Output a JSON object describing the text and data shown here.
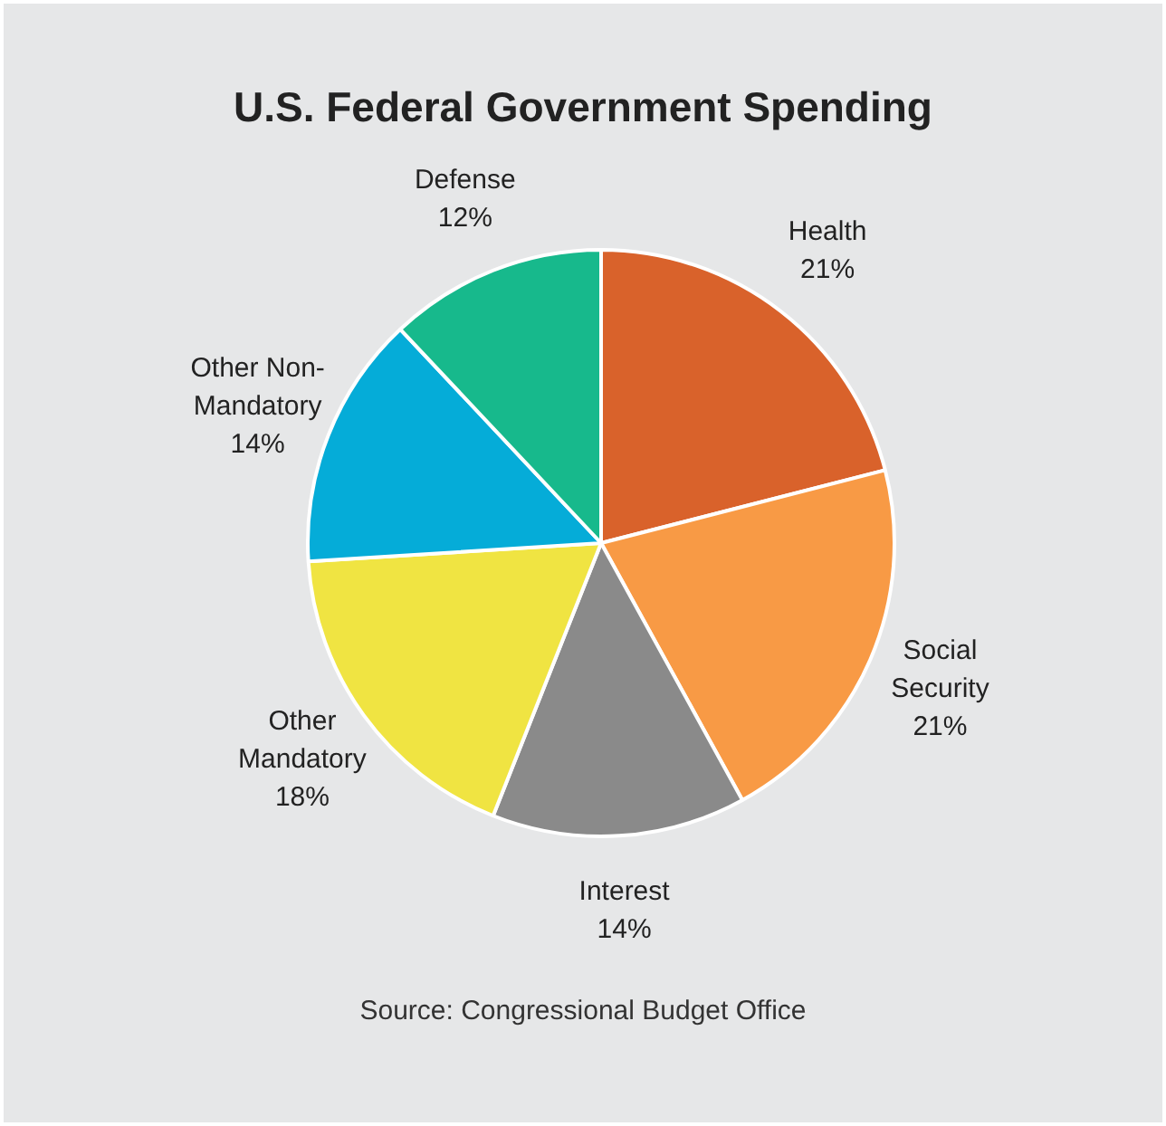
{
  "chart_data": {
    "type": "pie",
    "title": "U.S. Federal Government Spending",
    "categories": [
      "Health",
      "Social Security",
      "Interest",
      "Other Mandatory",
      "Other Non-Mandatory",
      "Defense"
    ],
    "values": [
      21,
      21,
      14,
      18,
      14,
      12
    ],
    "value_labels": [
      "21%",
      "21%",
      "14%",
      "18%",
      "14%",
      "12%"
    ],
    "colors": [
      "#d9622b",
      "#f89a45",
      "#8a8a8a",
      "#f0e442",
      "#05acd8",
      "#17b98c"
    ],
    "annotations": [
      "Source: Congressional Budget Office"
    ],
    "legend": false
  }
}
